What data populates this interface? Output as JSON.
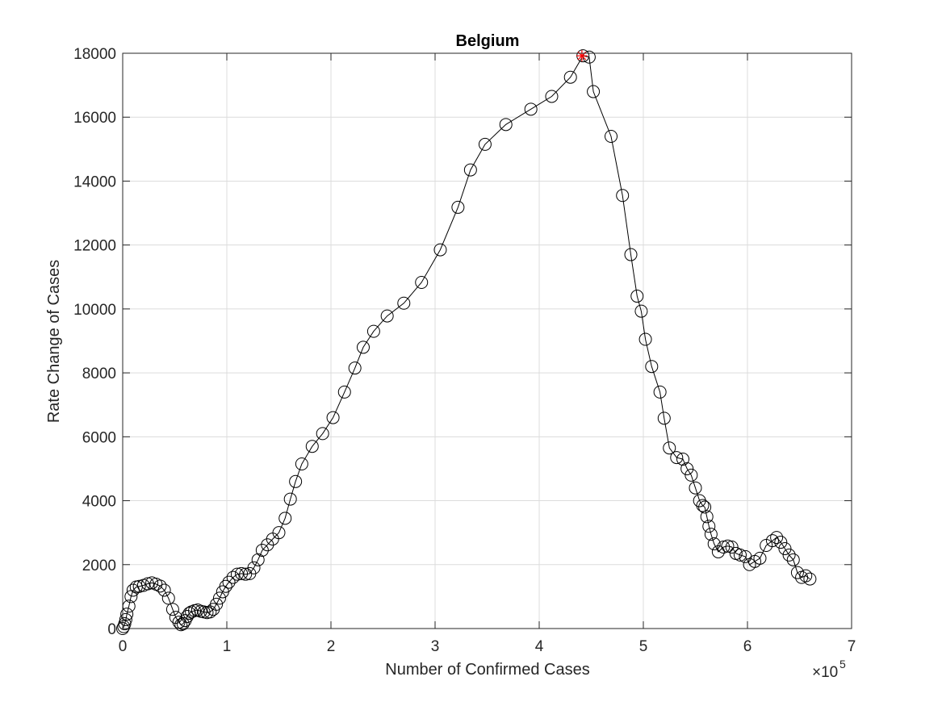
{
  "chart_data": {
    "type": "line",
    "title": "Belgium",
    "xlabel": "Number of Confirmed Cases",
    "ylabel": "Rate Change of Cases",
    "x_exponent_label": "×10",
    "x_exponent_power": "5",
    "xlim": [
      0,
      7
    ],
    "ylim": [
      0,
      18000
    ],
    "xticks": [
      0,
      1,
      2,
      3,
      4,
      5,
      6,
      7
    ],
    "yticks": [
      0,
      2000,
      4000,
      6000,
      8000,
      10000,
      12000,
      14000,
      16000,
      18000
    ],
    "grid": true,
    "x_units_note": "x values in units of 10^5 cases",
    "series": [
      {
        "marker": "circle",
        "line_color": "#000000",
        "x": [
          0.0,
          0.01,
          0.02,
          0.03,
          0.04,
          0.06,
          0.08,
          0.1,
          0.13,
          0.16,
          0.2,
          0.24,
          0.28,
          0.32,
          0.36,
          0.4,
          0.44,
          0.48,
          0.51,
          0.54,
          0.56,
          0.58,
          0.6,
          0.62,
          0.64,
          0.66,
          0.69,
          0.72,
          0.75,
          0.78,
          0.81,
          0.84,
          0.87,
          0.9,
          0.93,
          0.96,
          0.99,
          1.02,
          1.06,
          1.1,
          1.14,
          1.18,
          1.22,
          1.26,
          1.3,
          1.34,
          1.39,
          1.44,
          1.5,
          1.56,
          1.61,
          1.66,
          1.72,
          1.82,
          1.92,
          2.02,
          2.13,
          2.23,
          2.31,
          2.41,
          2.54,
          2.7,
          2.87,
          3.05,
          3.22,
          3.34,
          3.48,
          3.68,
          3.92,
          4.12,
          4.3,
          4.42,
          4.48,
          4.52,
          4.69,
          4.8,
          4.88,
          4.94,
          4.98,
          5.02,
          5.08,
          5.16,
          5.2,
          5.25,
          5.32,
          5.38,
          5.42,
          5.46,
          5.5,
          5.54,
          5.57,
          5.59,
          5.61,
          5.63,
          5.65,
          5.68,
          5.72,
          5.77,
          5.81,
          5.85,
          5.89,
          5.93,
          5.98,
          6.02,
          6.07,
          6.12,
          6.18,
          6.24,
          6.28,
          6.32,
          6.36,
          6.4,
          6.44,
          6.48,
          6.52,
          6.56,
          6.6
        ],
        "y": [
          0,
          60,
          150,
          280,
          450,
          700,
          1000,
          1200,
          1300,
          1320,
          1350,
          1400,
          1430,
          1390,
          1330,
          1200,
          950,
          600,
          350,
          200,
          120,
          150,
          250,
          380,
          480,
          520,
          560,
          580,
          540,
          520,
          500,
          520,
          600,
          760,
          950,
          1150,
          1320,
          1450,
          1600,
          1700,
          1720,
          1700,
          1720,
          1900,
          2150,
          2450,
          2620,
          2800,
          3000,
          3450,
          4050,
          4600,
          5150,
          5700,
          6100,
          6600,
          7400,
          8150,
          8800,
          9300,
          9780,
          10180,
          10830,
          11850,
          13180,
          14350,
          15150,
          15770,
          16250,
          16650,
          17250,
          17920,
          17880,
          16800,
          15400,
          13550,
          11700,
          10400,
          9930,
          9050,
          8200,
          7400,
          6580,
          5650,
          5350,
          5300,
          5000,
          4800,
          4400,
          4000,
          3850,
          3800,
          3500,
          3200,
          2950,
          2650,
          2400,
          2550,
          2580,
          2550,
          2350,
          2300,
          2250,
          2000,
          2100,
          2200,
          2600,
          2750,
          2850,
          2700,
          2500,
          2300,
          2150,
          1750,
          1600,
          1650,
          1550
        ],
        "highlight": {
          "x": 4.41,
          "y": 17920,
          "marker": "star",
          "color": "#ff0000"
        }
      }
    ]
  }
}
